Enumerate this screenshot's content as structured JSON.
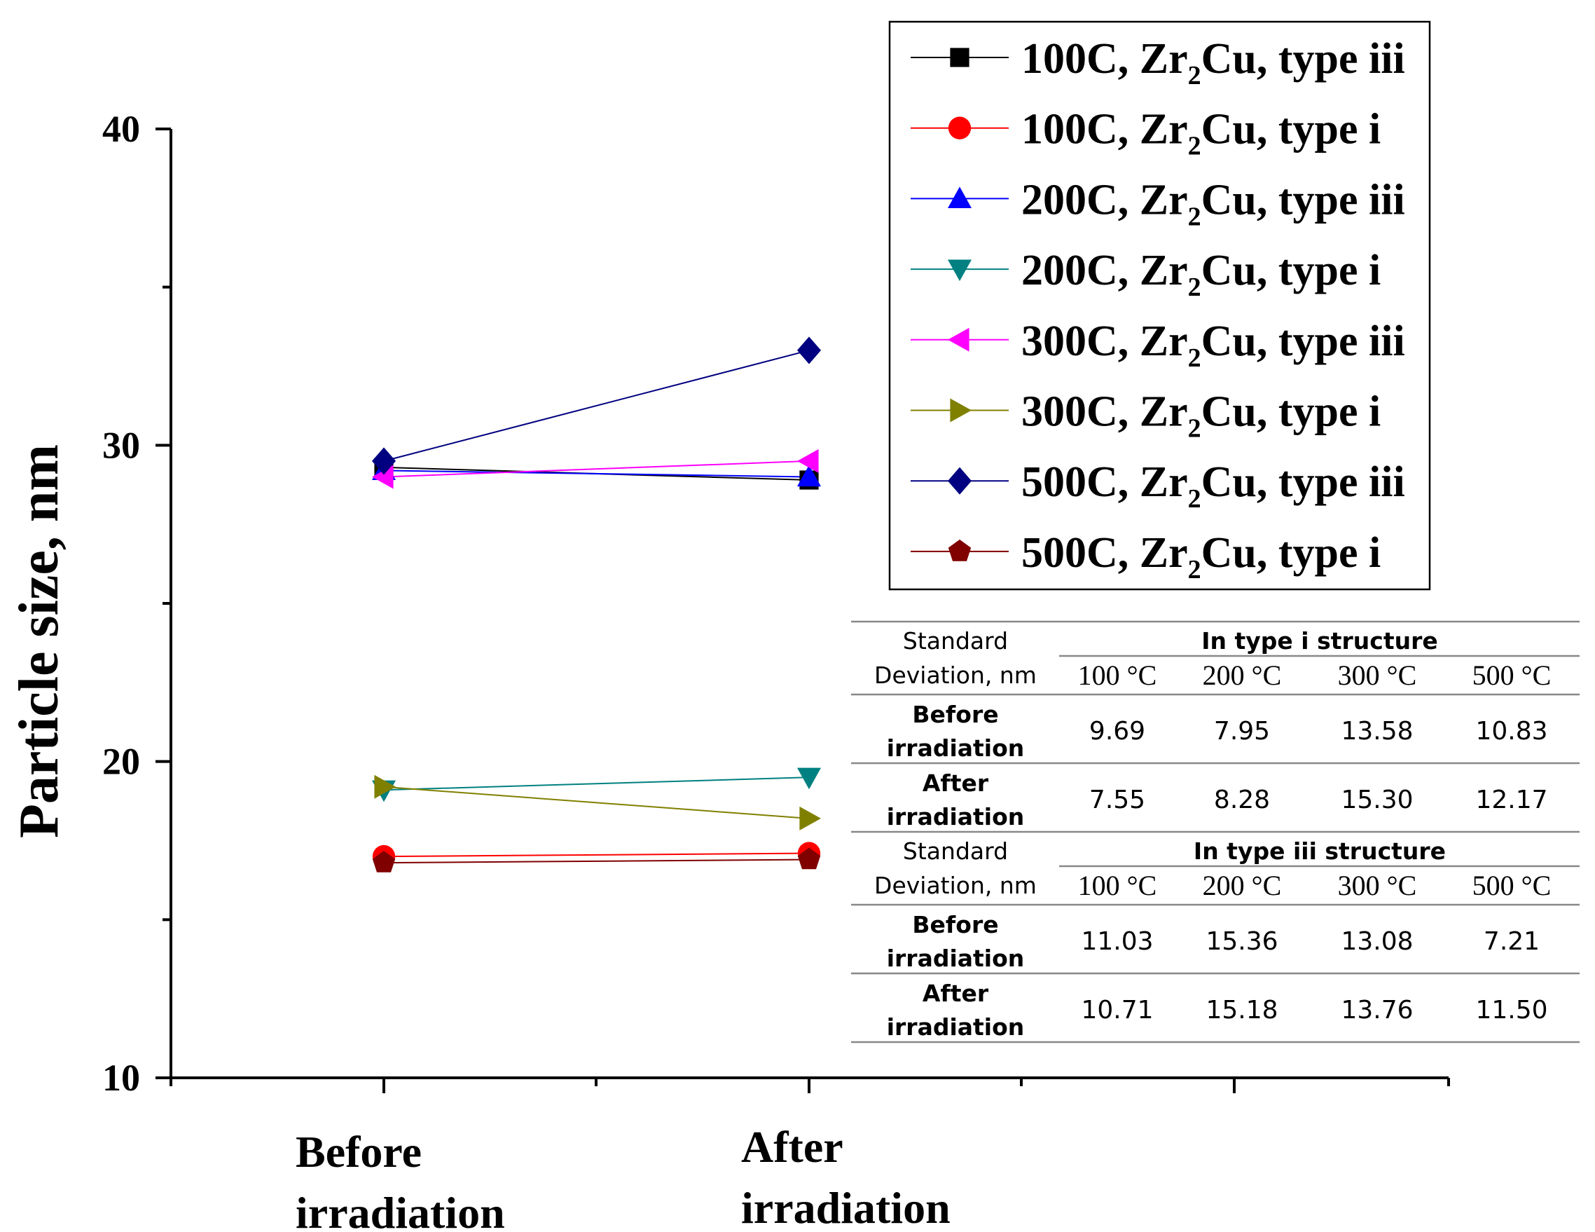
{
  "chart_data": {
    "type": "line",
    "ylabel": "Particle size, nm",
    "xlabel": "",
    "ylim": [
      10,
      40
    ],
    "yticks": [
      10,
      20,
      30,
      40
    ],
    "categories": [
      "Before irradiation",
      "After irradiation"
    ],
    "category_lines": [
      [
        "Before",
        "irradiation"
      ],
      [
        "After",
        "irradiation"
      ]
    ],
    "legend_position": "top-right",
    "series": [
      {
        "name_parts": [
          "100C, Zr",
          "2",
          "Cu, type iii"
        ],
        "values": [
          29.3,
          28.9
        ],
        "color": "#000000",
        "marker": "square"
      },
      {
        "name_parts": [
          "100C, Zr",
          "2",
          "Cu, type i"
        ],
        "values": [
          17.0,
          17.1
        ],
        "color": "#ff0000",
        "marker": "circle"
      },
      {
        "name_parts": [
          "200C, Zr",
          "2",
          "Cu, type iii"
        ],
        "values": [
          29.2,
          29.0
        ],
        "color": "#0000ff",
        "marker": "triangle-up"
      },
      {
        "name_parts": [
          "200C, Zr",
          "2",
          "Cu, type i"
        ],
        "values": [
          19.1,
          19.5
        ],
        "color": "#008080",
        "marker": "triangle-down"
      },
      {
        "name_parts": [
          "300C, Zr",
          "2",
          "Cu, type iii"
        ],
        "values": [
          29.0,
          29.5
        ],
        "color": "#ff00ff",
        "marker": "triangle-left"
      },
      {
        "name_parts": [
          "300C, Zr",
          "2",
          "Cu, type i"
        ],
        "values": [
          19.2,
          18.2
        ],
        "color": "#808000",
        "marker": "triangle-right"
      },
      {
        "name_parts": [
          "500C, Zr",
          "2",
          "Cu, type iii"
        ],
        "values": [
          29.5,
          33.0
        ],
        "color": "#000080",
        "marker": "diamond"
      },
      {
        "name_parts": [
          "500C, Zr",
          "2",
          "Cu, type i"
        ],
        "values": [
          16.8,
          16.9
        ],
        "color": "#800000",
        "marker": "pentagon"
      }
    ]
  },
  "table": {
    "sections": [
      {
        "header": [
          "Standard",
          "Deviation, nm"
        ],
        "title": "In type i structure",
        "temps": [
          "100 °C",
          "200 °C",
          "300 °C",
          "500 °C"
        ],
        "rows": [
          {
            "label": [
              "Before",
              "irradiation"
            ],
            "values": [
              "9.69",
              "7.95",
              "13.58",
              "10.83"
            ]
          },
          {
            "label": [
              "After",
              "irradiation"
            ],
            "values": [
              "7.55",
              "8.28",
              "15.30",
              "12.17"
            ]
          }
        ]
      },
      {
        "header": [
          "Standard",
          "Deviation, nm"
        ],
        "title": "In type iii structure",
        "temps": [
          "100 °C",
          "200 °C",
          "300 °C",
          "500 °C"
        ],
        "rows": [
          {
            "label": [
              "Before",
              "irradiation"
            ],
            "values": [
              "11.03",
              "15.36",
              "13.08",
              "7.21"
            ]
          },
          {
            "label": [
              "After",
              "irradiation"
            ],
            "values": [
              "10.71",
              "15.18",
              "13.76",
              "11.50"
            ]
          }
        ]
      }
    ]
  }
}
